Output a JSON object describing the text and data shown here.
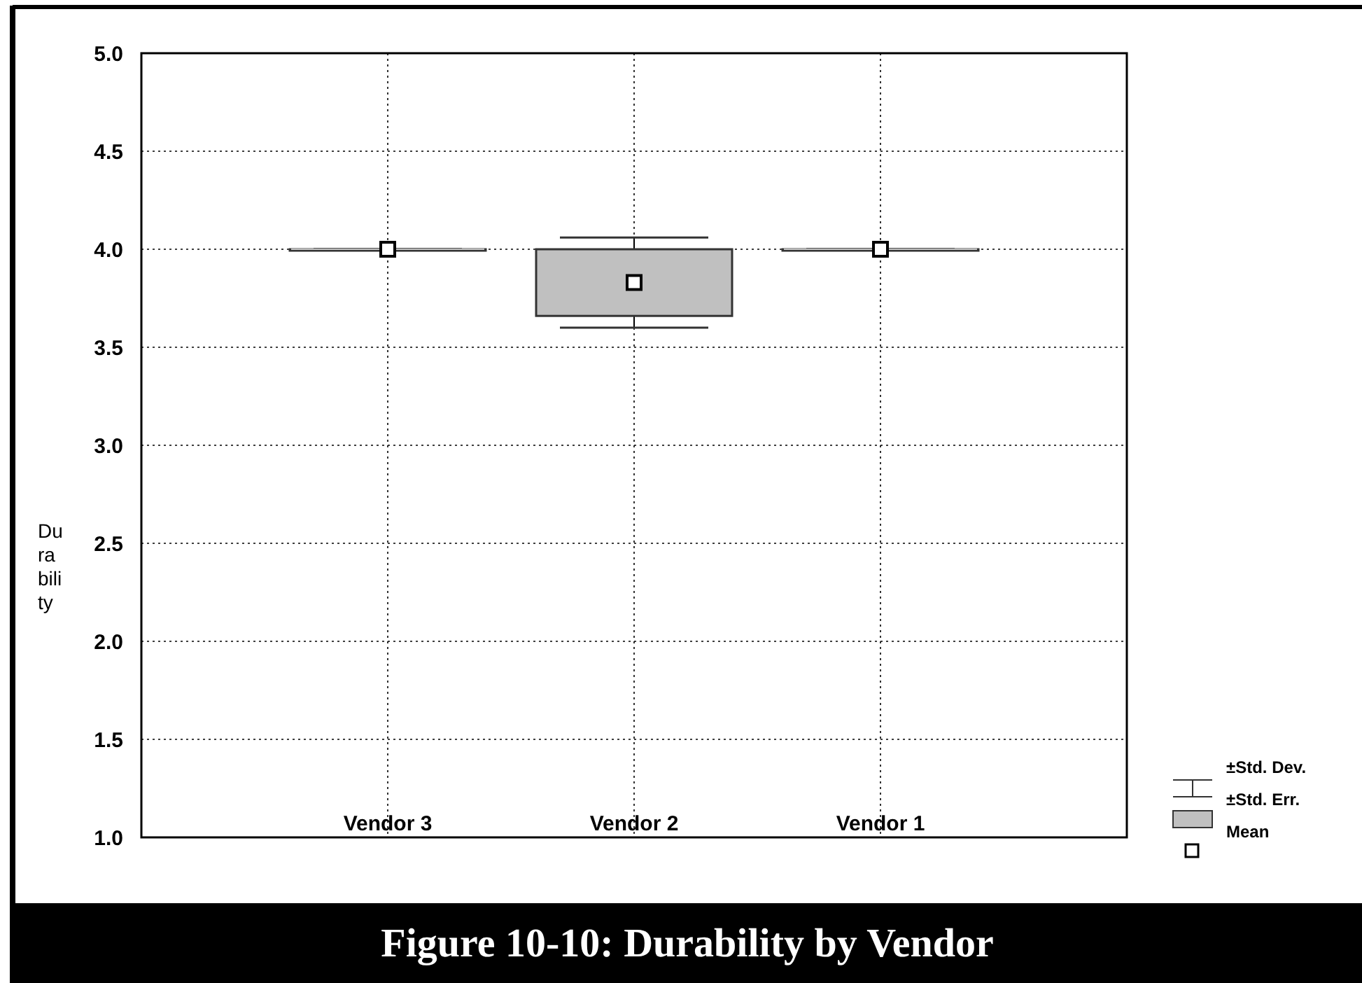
{
  "chart_data": {
    "type": "box",
    "title": "Figure 10-10:  Durability by Vendor",
    "ylabel": "Durability",
    "categories": [
      "Vendor 3",
      "Vendor 2",
      "Vendor 1"
    ],
    "boxes": [
      {
        "low": 4.0,
        "q1": 4.0,
        "median": 4.0,
        "q3": 4.0,
        "high": 4.0,
        "mean": 4.0
      },
      {
        "low": 3.6,
        "q1": 3.66,
        "median": 3.83,
        "q3": 4.0,
        "high": 4.06,
        "mean": 3.83
      },
      {
        "low": 4.0,
        "q1": 4.0,
        "median": 4.0,
        "q3": 4.0,
        "high": 4.0,
        "mean": 4.0
      }
    ],
    "color": "#c0c0c0",
    "ylim": [
      1.0,
      5.0
    ],
    "yticks": [
      {
        "value": 1,
        "label": "1.0"
      },
      {
        "value": 1.5,
        "label": "1.5"
      },
      {
        "value": 2,
        "label": "2.0"
      },
      {
        "value": 2.5,
        "label": "2.5"
      },
      {
        "value": 3,
        "label": "3.0"
      },
      {
        "value": 3.5,
        "label": "3.5"
      },
      {
        "value": 4,
        "label": "4.0"
      },
      {
        "value": 4.5,
        "label": "4.5"
      },
      {
        "value": 5,
        "label": "5.0"
      }
    ],
    "grid": true,
    "annotations": [
      "±Std. Dev.",
      "±Std. Err.",
      "Mean"
    ]
  }
}
